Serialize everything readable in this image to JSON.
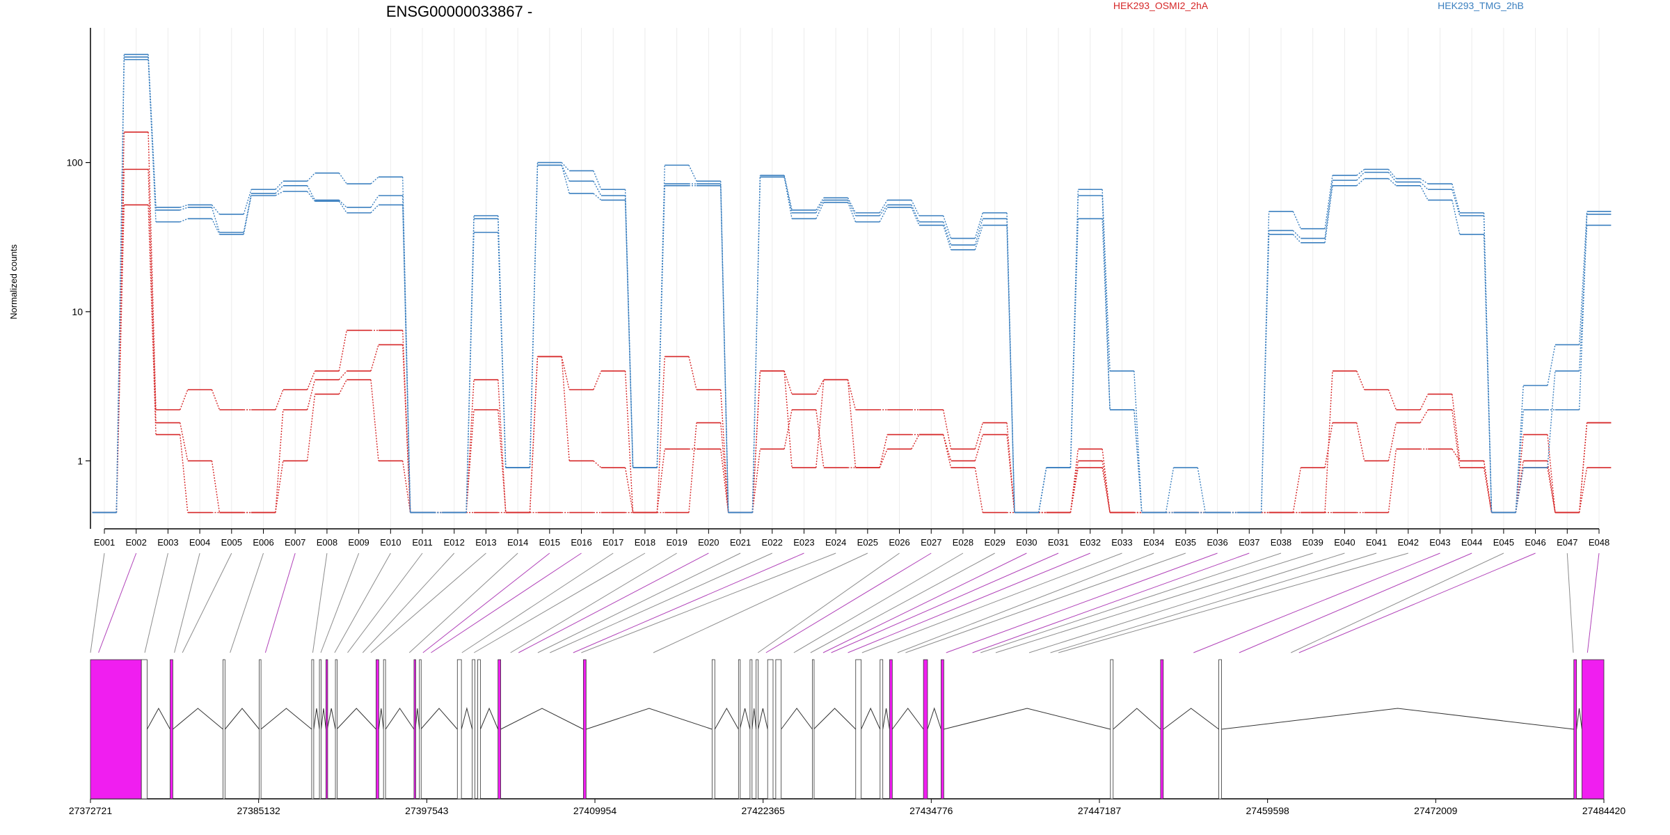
{
  "chart_data": {
    "type": "line",
    "title": "ENSG00000033867 -",
    "ylabel": "Normalized counts",
    "yscale": "log",
    "ylim": [
      0.35,
      800
    ],
    "yticks": [
      1,
      10,
      100
    ],
    "ytick_labels": [
      "1",
      "10",
      "100"
    ],
    "categories": [
      "E001",
      "E002",
      "E003",
      "E004",
      "E005",
      "E006",
      "E007",
      "E008",
      "E009",
      "E010",
      "E011",
      "E012",
      "E013",
      "E014",
      "E015",
      "E016",
      "E017",
      "E018",
      "E019",
      "E020",
      "E021",
      "E022",
      "E023",
      "E024",
      "E025",
      "E026",
      "E027",
      "E028",
      "E029",
      "E030",
      "E031",
      "E032",
      "E033",
      "E034",
      "E035",
      "E036",
      "E037",
      "E038",
      "E039",
      "E040",
      "E041",
      "E042",
      "E043",
      "E044",
      "E045",
      "E046",
      "E047",
      "E048"
    ],
    "groups": [
      {
        "name": "HEK293_OSMI2_2hA",
        "color": "#d62728"
      },
      {
        "name": "HEK293_TMG_2hB",
        "color": "#3a7fbf"
      }
    ],
    "series": [
      {
        "group": 0,
        "values": [
          0.45,
          160,
          2.2,
          3,
          2.2,
          2.2,
          3,
          4,
          7.5,
          7.5,
          0.45,
          0.45,
          3.5,
          0.45,
          5,
          3,
          4,
          0.45,
          5,
          3,
          0.45,
          4,
          2.8,
          3.5,
          2.2,
          2.2,
          2.2,
          1.2,
          1.8,
          0.45,
          0.45,
          1.2,
          0.45,
          0.45,
          0.45,
          0.45,
          0.45,
          0.45,
          0.45,
          4,
          3,
          2.2,
          2.8,
          1,
          0.45,
          1.5,
          0.45,
          1.8
        ]
      },
      {
        "group": 0,
        "values": [
          0.45,
          90,
          1.8,
          1,
          0.45,
          0.45,
          2.2,
          3.5,
          4,
          6,
          0.45,
          0.45,
          2.2,
          0.45,
          5,
          1,
          0.9,
          0.45,
          1.2,
          1.2,
          0.45,
          1.2,
          2.2,
          0.9,
          0.9,
          1.5,
          1.5,
          1,
          1.5,
          0.45,
          0.45,
          1,
          0.45,
          0.45,
          0.45,
          0.45,
          0.45,
          0.45,
          0.9,
          1.8,
          1,
          1.8,
          2.2,
          0.9,
          0.45,
          1,
          0.45,
          0.9
        ]
      },
      {
        "group": 0,
        "values": [
          0.45,
          52,
          1.5,
          0.45,
          0.45,
          0.45,
          1,
          2.8,
          3.5,
          1,
          0.45,
          0.45,
          0.45,
          0.45,
          0.45,
          0.45,
          0.45,
          0.45,
          0.45,
          1.8,
          0.45,
          4,
          0.9,
          3.5,
          0.9,
          1.2,
          1.5,
          0.9,
          0.45,
          0.45,
          0.45,
          0.9,
          0.45,
          0.45,
          0.45,
          0.45,
          0.45,
          0.45,
          0.45,
          0.45,
          0.45,
          1.2,
          1.2,
          1,
          0.45,
          0.9,
          0.45,
          1.8
        ]
      },
      {
        "group": 1,
        "values": [
          0.45,
          530,
          50,
          52,
          45,
          66,
          75,
          85,
          72,
          80,
          0.45,
          0.45,
          44,
          0.9,
          100,
          88,
          66,
          0.9,
          96,
          75,
          0.45,
          82,
          48,
          58,
          46,
          56,
          44,
          31,
          46,
          0.45,
          0.9,
          66,
          4,
          0.45,
          0.9,
          0.45,
          0.45,
          47,
          36,
          82,
          90,
          78,
          72,
          46,
          0.45,
          3.2,
          6,
          47
        ]
      },
      {
        "group": 1,
        "values": [
          0.45,
          510,
          48,
          50,
          34,
          62,
          70,
          56,
          50,
          60,
          0.45,
          0.45,
          42,
          0.9,
          96,
          75,
          60,
          0.9,
          72,
          72,
          0.45,
          80,
          46,
          56,
          44,
          52,
          40,
          28,
          42,
          0.45,
          0.9,
          60,
          2.2,
          0.45,
          0.45,
          0.45,
          0.45,
          35,
          31,
          76,
          86,
          74,
          66,
          44,
          0.45,
          2.2,
          2.2,
          45
        ]
      },
      {
        "group": 1,
        "values": [
          0.45,
          490,
          40,
          42,
          33,
          60,
          64,
          55,
          46,
          52,
          0.45,
          0.45,
          34,
          0.9,
          96,
          62,
          56,
          0.9,
          70,
          70,
          0.45,
          80,
          42,
          54,
          40,
          50,
          38,
          26,
          38,
          0.45,
          0.9,
          42,
          2.2,
          0.45,
          0.45,
          0.45,
          0.45,
          33,
          29,
          70,
          78,
          70,
          56,
          33,
          0.45,
          0.9,
          4,
          38
        ]
      }
    ]
  },
  "gene_model": {
    "tick_labels": [
      "27372721",
      "27385132",
      "27397543",
      "27409954",
      "27422365",
      "27434776",
      "27447187",
      "27459598",
      "27472009",
      "27484420"
    ],
    "exon_starts": [
      27372721,
      27376480,
      27378600,
      27382500,
      27385180,
      27389050,
      27389620,
      27390100,
      27390800,
      27393800,
      27394350,
      27396600,
      27397000,
      27399800,
      27400900,
      27401300,
      27402800,
      27409100,
      27418600,
      27420550,
      27421400,
      27421850,
      27422700,
      27423300,
      27426000,
      27429200,
      27431000,
      27431700,
      27434200,
      27435500,
      27448000,
      27451700,
      27456000,
      27482200,
      27482800
    ],
    "exon_ends": [
      27376480,
      27376900,
      27378800,
      27382650,
      27385300,
      27389200,
      27389750,
      27390200,
      27390900,
      27394000,
      27394500,
      27396700,
      27397100,
      27400100,
      27401100,
      27401500,
      27403000,
      27409300,
      27418800,
      27420650,
      27421550,
      27422000,
      27423100,
      27423700,
      27426100,
      27429600,
      27431200,
      27431900,
      27434500,
      27435700,
      27448200,
      27451900,
      27456200,
      27482400,
      27484420
    ],
    "exon_colors": [
      "magenta",
      "white",
      "magenta",
      "white",
      "white",
      "white",
      "white",
      "magenta",
      "white",
      "magenta",
      "white",
      "magenta",
      "white",
      "white",
      "white",
      "white",
      "magenta",
      "magenta",
      "white",
      "white",
      "white",
      "white",
      "white",
      "white",
      "white",
      "white",
      "white",
      "magenta",
      "magenta",
      "magenta",
      "white",
      "magenta",
      "white",
      "magenta",
      "magenta"
    ],
    "connector_colors": [
      "gray",
      "magenta",
      "gray",
      "gray",
      "gray",
      "gray",
      "magenta",
      "gray",
      "gray",
      "gray",
      "gray",
      "gray",
      "gray",
      "gray",
      "magenta",
      "magenta",
      "gray",
      "gray",
      "gray",
      "magenta",
      "gray",
      "gray",
      "magenta",
      "gray",
      "gray",
      "gray",
      "magenta",
      "gray",
      "gray",
      "magenta",
      "magenta",
      "magenta",
      "gray",
      "gray",
      "gray",
      "magenta",
      "magenta",
      "gray",
      "gray",
      "gray",
      "gray",
      "gray",
      "magenta",
      "magenta",
      "gray",
      "magenta",
      "gray",
      "magenta"
    ],
    "colors": {
      "magenta": "#f01ef0",
      "connector_magenta": "#b040b8",
      "connector_gray": "#8c8c8c",
      "intron": "#333333"
    }
  }
}
